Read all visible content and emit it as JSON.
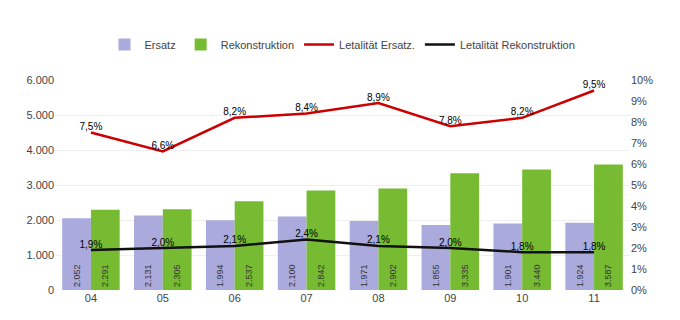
{
  "chart_data": {
    "type": "bar",
    "categories": [
      "04",
      "05",
      "06",
      "07",
      "08",
      "09",
      "10",
      "11"
    ],
    "series": [
      {
        "name": "Ersatz",
        "type": "bar",
        "color": "#aaaadd",
        "values": [
          2052,
          2131,
          1994,
          2100,
          1971,
          1855,
          1901,
          1924
        ],
        "value_labels": [
          "2.052",
          "2.131",
          "1.994",
          "2.100",
          "1.971",
          "1.855",
          "1.901",
          "1.924"
        ]
      },
      {
        "name": "Rekonstruktion",
        "type": "bar",
        "color": "#77bb33",
        "values": [
          2291,
          2305,
          2537,
          2842,
          2902,
          3335,
          3440,
          3587
        ],
        "value_labels": [
          "2.291",
          "2.305",
          "2.537",
          "2.842",
          "2.902",
          "3.335",
          "3.440",
          "3.587"
        ]
      },
      {
        "name": "Letalität Ersatz.",
        "type": "line",
        "axis": "y2",
        "color": "#cc0000",
        "values": [
          7.5,
          6.6,
          8.2,
          8.4,
          8.9,
          7.8,
          8.2,
          9.5
        ],
        "value_labels": [
          "7,5%",
          "6,6%",
          "8,2%",
          "8,4%",
          "8,9%",
          "7,8%",
          "8,2%",
          "9,5%"
        ]
      },
      {
        "name": "Letalität Rekonstruktion",
        "type": "line",
        "axis": "y2",
        "color": "#111111",
        "values": [
          1.9,
          2.0,
          2.1,
          2.4,
          2.1,
          2.0,
          1.8,
          1.8
        ],
        "value_labels": [
          "1,9%",
          "2,0%",
          "2,1%",
          "2,4%",
          "2,1%",
          "2,0%",
          "1,8%",
          "1,8%"
        ]
      }
    ],
    "ylim": [
      0,
      6000
    ],
    "yticks": [
      0,
      {
        "value": 1000,
        "label": "1.000"
      },
      {
        "value": 2000,
        "label": "2.000"
      },
      {
        "value": 3000,
        "label": "3.000"
      },
      {
        "value": 4000,
        "label": "4.000"
      },
      {
        "value": 5000,
        "label": "5.000"
      },
      {
        "value": 6000,
        "label": "6.000"
      }
    ],
    "y2lim": [
      0,
      10
    ],
    "y2ticks": [
      {
        "value": 0,
        "label": "0%"
      },
      {
        "value": 1,
        "label": "1%"
      },
      {
        "value": 2,
        "label": "2%"
      },
      {
        "value": 3,
        "label": "3%"
      },
      {
        "value": 4,
        "label": "4%"
      },
      {
        "value": 5,
        "label": "5%"
      },
      {
        "value": 6,
        "label": "6%"
      },
      {
        "value": 7,
        "label": "7%"
      },
      {
        "value": 8,
        "label": "8%"
      },
      {
        "value": 9,
        "label": "9%"
      },
      {
        "value": 10,
        "label": "10%"
      }
    ],
    "grid": true,
    "legend": "top",
    "data_labels": true
  }
}
